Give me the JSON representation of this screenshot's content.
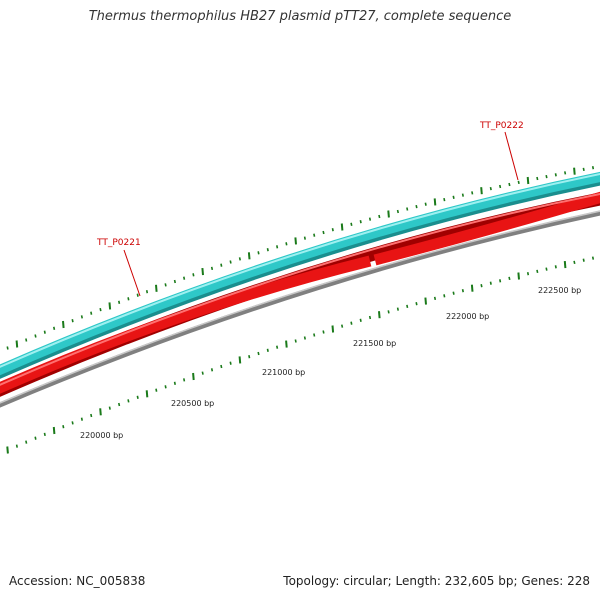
{
  "title": "Thermus thermophilus HB27 plasmid pTT27, complete sequence",
  "footer": {
    "accession": "Accession: NC_005838",
    "summary": "Topology: circular; Length: 232,605 bp; Genes: 228"
  },
  "genes": [
    {
      "label": "TT_P0221",
      "strand": "forward"
    },
    {
      "label": "TT_P0222",
      "strand": "forward"
    }
  ],
  "scale_labels": [
    "220000 bp",
    "220500 bp",
    "221000 bp",
    "221500 bp",
    "222000 bp",
    "222500 bp"
  ],
  "colors": {
    "forward_track": "#2ec8c8",
    "reverse_track": "#e81414",
    "backbone": "#8a8a8a",
    "ticks": "#1a7a1a",
    "gene_label": "#cc0000"
  }
}
